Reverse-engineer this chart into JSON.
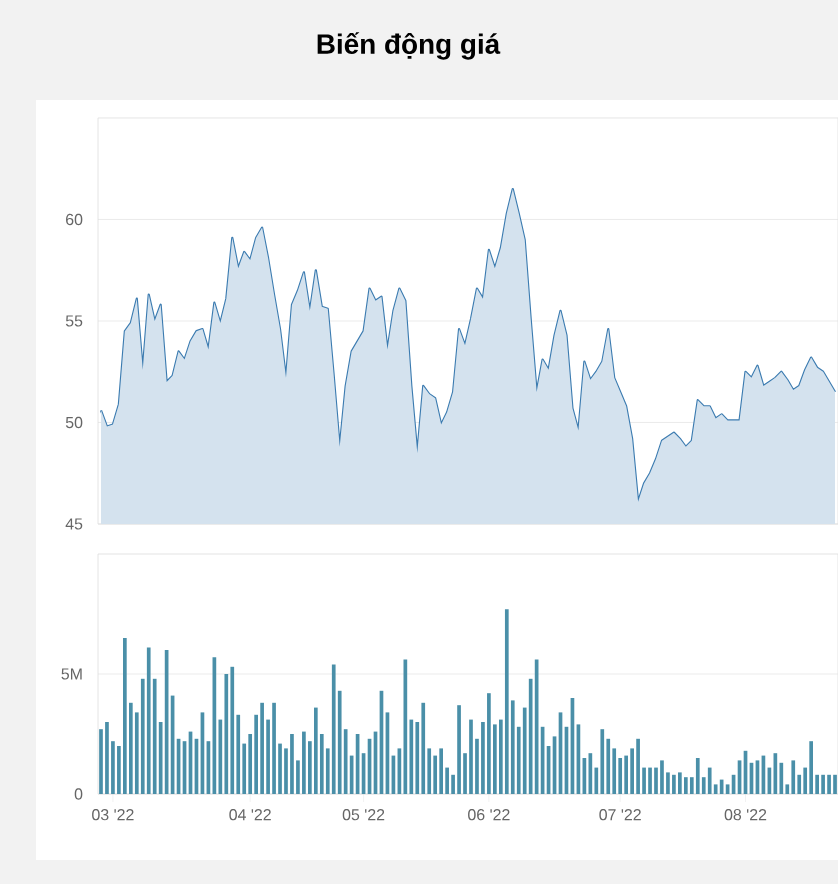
{
  "chart_data": [
    {
      "type": "area",
      "title": "Biến động giá",
      "color": "#3b7bb0",
      "ylim": [
        45,
        65
      ],
      "yticks": [
        45,
        50,
        55,
        60
      ],
      "grid": "y",
      "categories": [
        null,
        null,
        null,
        null,
        null,
        null,
        null,
        null,
        null,
        null,
        null,
        null,
        null,
        null,
        null,
        null,
        null,
        null,
        null,
        null,
        null,
        null,
        null,
        null,
        null,
        null,
        null,
        null,
        null,
        null,
        null,
        null,
        null,
        null,
        null,
        null,
        null,
        null,
        null,
        null,
        null,
        null,
        null,
        null,
        null,
        null,
        null,
        null,
        null,
        null,
        null,
        null,
        null,
        null,
        null,
        null,
        null,
        null,
        null,
        null,
        null,
        null,
        null,
        null,
        null,
        null,
        null,
        null,
        null,
        null,
        null,
        null,
        null,
        null,
        null,
        null,
        null,
        null,
        null,
        null,
        null,
        null,
        null,
        null,
        null,
        null,
        null,
        null,
        null,
        null,
        null,
        null,
        null,
        null,
        null,
        null,
        null,
        null,
        null,
        null,
        null,
        null,
        null,
        null,
        null,
        null,
        null,
        null,
        null,
        null,
        null,
        null,
        null,
        null,
        null,
        null,
        null,
        null,
        null,
        null,
        null,
        null,
        null,
        null
      ],
      "values": [
        50.6,
        49.8,
        49.9,
        50.9,
        54.5,
        54.9,
        56.1,
        52.6,
        56.3,
        55.0,
        55.8,
        52.0,
        52.3,
        53.5,
        53.1,
        54.0,
        54.5,
        54.6,
        53.6,
        55.9,
        54.9,
        56.1,
        59.1,
        57.6,
        58.4,
        58.0,
        59.1,
        59.6,
        58.1,
        56.3,
        54.6,
        52.2,
        55.8,
        56.5,
        57.4,
        55.5,
        57.5,
        55.7,
        55.6,
        52.3,
        48.8,
        51.8,
        53.5,
        54.0,
        54.5,
        56.6,
        56.0,
        56.2,
        53.6,
        55.5,
        56.6,
        56.0,
        51.8,
        48.5,
        51.8,
        51.4,
        51.2,
        49.9,
        50.5,
        51.5,
        54.6,
        53.8,
        55.1,
        56.6,
        56.1,
        58.5,
        57.6,
        58.6,
        60.3,
        61.5,
        60.3,
        59.0,
        55.1,
        51.5,
        53.1,
        52.6,
        54.3,
        55.5,
        54.3,
        50.7,
        49.6,
        53.0,
        52.1,
        52.5,
        53.0,
        54.6,
        52.2,
        51.5,
        50.8,
        49.2,
        46.1,
        47.0,
        47.5,
        48.2,
        49.1,
        49.3,
        49.5,
        49.2,
        48.8,
        49.1,
        51.1,
        50.8,
        50.8,
        50.2,
        50.4,
        50.1,
        50.1,
        50.1,
        52.5,
        52.2,
        52.8,
        51.8,
        52.0,
        52.2,
        52.5,
        52.1,
        51.6,
        51.8,
        52.6,
        53.2,
        52.7,
        52.5,
        52.0,
        51.5
      ]
    },
    {
      "type": "bar",
      "color": "#4a8fa8",
      "ylim": [
        0,
        10
      ],
      "yticks": [
        0,
        {
          "value": 5,
          "label": "5M"
        }
      ],
      "grid": "y",
      "categories": [
        null,
        null,
        "03 '22",
        null,
        null,
        null,
        null,
        null,
        null,
        null,
        null,
        null,
        null,
        null,
        null,
        null,
        null,
        null,
        null,
        null,
        null,
        null,
        null,
        null,
        null,
        "04 '22",
        null,
        null,
        null,
        null,
        null,
        null,
        null,
        null,
        null,
        null,
        null,
        null,
        null,
        null,
        null,
        null,
        null,
        null,
        "05 '22",
        null,
        null,
        null,
        null,
        null,
        null,
        null,
        null,
        null,
        null,
        null,
        null,
        null,
        null,
        null,
        null,
        null,
        null,
        null,
        null,
        "06 '22",
        null,
        null,
        null,
        null,
        null,
        null,
        null,
        null,
        null,
        null,
        null,
        null,
        null,
        null,
        null,
        null,
        null,
        null,
        null,
        null,
        null,
        "07 '22",
        null,
        null,
        null,
        null,
        null,
        null,
        null,
        null,
        null,
        null,
        null,
        null,
        null,
        null,
        null,
        null,
        null,
        null,
        null,
        null,
        "08 '22",
        null,
        null,
        null,
        null,
        null,
        null,
        null,
        null,
        null,
        null,
        null,
        null,
        null,
        null,
        null
      ],
      "values": [
        2.7,
        3.0,
        2.2,
        2.0,
        6.5,
        3.8,
        3.4,
        4.8,
        6.1,
        4.8,
        3.0,
        6.0,
        4.1,
        2.3,
        2.2,
        2.6,
        2.3,
        3.4,
        2.2,
        5.7,
        3.1,
        5.0,
        5.3,
        3.3,
        2.1,
        2.5,
        3.3,
        3.8,
        3.1,
        3.8,
        2.1,
        1.9,
        2.5,
        1.4,
        2.6,
        2.2,
        3.6,
        2.5,
        1.9,
        5.4,
        4.3,
        2.7,
        1.6,
        2.5,
        1.7,
        2.3,
        2.6,
        4.3,
        3.4,
        1.6,
        1.9,
        5.6,
        3.1,
        3.0,
        3.8,
        1.9,
        1.6,
        1.9,
        1.1,
        0.8,
        3.7,
        1.7,
        3.1,
        2.3,
        3.0,
        4.2,
        2.9,
        3.1,
        7.7,
        3.9,
        2.8,
        3.6,
        4.8,
        5.6,
        2.8,
        2.0,
        2.4,
        3.4,
        2.8,
        4.0,
        2.9,
        1.5,
        1.7,
        1.1,
        2.7,
        2.3,
        1.9,
        1.5,
        1.6,
        1.9,
        2.3,
        1.1,
        1.1,
        1.1,
        1.4,
        0.9,
        0.8,
        0.9,
        0.7,
        0.7,
        1.5,
        0.7,
        1.1,
        0.4,
        0.6,
        0.4,
        0.8,
        1.4,
        1.8,
        1.3,
        1.4,
        1.6,
        1.1,
        1.7,
        1.3,
        0.4,
        1.4,
        0.8,
        1.1,
        2.2,
        0.8,
        0.8,
        0.8,
        0.8
      ]
    }
  ]
}
